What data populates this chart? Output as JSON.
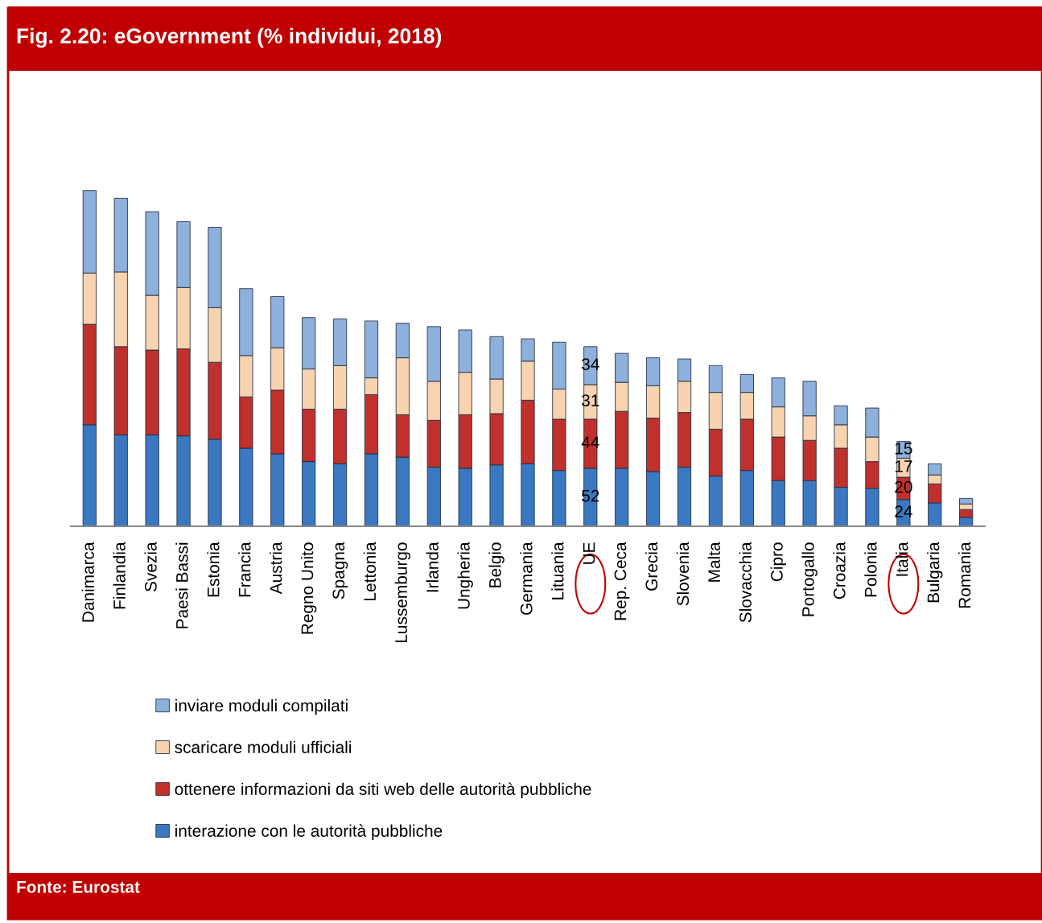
{
  "chart_data": {
    "type": "bar",
    "stacked": true,
    "title": "Fig. 2.20: eGovernment (% individui, 2018)",
    "categories": [
      "Danimarca",
      "Finlandia",
      "Svezia",
      "Paesi Bassi",
      "Estonia",
      "Francia",
      "Austria",
      "Regno Unito",
      "Spagna",
      "Lettonia",
      "Lussemburgo",
      "Irlanda",
      "Ungheria",
      "Belgio",
      "Germania",
      "Lituania",
      "UE",
      "Rep. Ceca",
      "Grecia",
      "Slovenia",
      "Malta",
      "Slovacchia",
      "Cipro",
      "Portogallo",
      "Croazia",
      "Polonia",
      "Italia",
      "Bulgaria",
      "Romania"
    ],
    "series": [
      {
        "name": "interazione con le autorità pubbliche",
        "color": "#3a78c2",
        "values": [
          91,
          82,
          82,
          81,
          78,
          70,
          65,
          58,
          56,
          65,
          62,
          53,
          52,
          55,
          56,
          50,
          52,
          52,
          49,
          53,
          45,
          50,
          41,
          41,
          35,
          34,
          24,
          21,
          8
        ],
        "value_labels": [
          null,
          null,
          null,
          null,
          null,
          null,
          null,
          null,
          null,
          null,
          null,
          null,
          null,
          null,
          null,
          null,
          "52",
          null,
          null,
          null,
          null,
          null,
          null,
          null,
          null,
          null,
          "24",
          null,
          null
        ]
      },
      {
        "name": "ottenere informazioni da siti web delle autorità pubbliche",
        "color": "#c0302c",
        "values": [
          90,
          79,
          76,
          78,
          69,
          46,
          57,
          47,
          49,
          53,
          38,
          42,
          48,
          46,
          57,
          46,
          44,
          51,
          48,
          49,
          42,
          46,
          39,
          36,
          35,
          24,
          20,
          17,
          7
        ],
        "value_labels": [
          null,
          null,
          null,
          null,
          null,
          null,
          null,
          null,
          null,
          null,
          null,
          null,
          null,
          null,
          null,
          null,
          "44",
          null,
          null,
          null,
          null,
          null,
          null,
          null,
          null,
          null,
          "20",
          null,
          null
        ]
      },
      {
        "name": "scaricare moduli ufficiali",
        "color": "#f8d3b0",
        "values": [
          46,
          67,
          49,
          55,
          49,
          37,
          38,
          36,
          39,
          15,
          51,
          35,
          38,
          31,
          35,
          27,
          31,
          26,
          29,
          28,
          33,
          24,
          27,
          22,
          21,
          22,
          17,
          8,
          5
        ],
        "value_labels": [
          null,
          null,
          null,
          null,
          null,
          null,
          null,
          null,
          null,
          null,
          null,
          null,
          null,
          null,
          null,
          null,
          "31",
          null,
          null,
          null,
          null,
          null,
          null,
          null,
          null,
          null,
          "17",
          null,
          null
        ]
      },
      {
        "name": "inviare moduli compilati",
        "color": "#8db0dc",
        "values": [
          74,
          66,
          75,
          59,
          72,
          60,
          46,
          46,
          42,
          51,
          31,
          49,
          38,
          38,
          20,
          42,
          34,
          26,
          25,
          20,
          24,
          16,
          26,
          31,
          17,
          26,
          15,
          10,
          5
        ],
        "value_labels": [
          null,
          null,
          null,
          null,
          null,
          null,
          null,
          null,
          null,
          null,
          null,
          null,
          null,
          null,
          null,
          null,
          "34",
          null,
          null,
          null,
          null,
          null,
          null,
          null,
          null,
          null,
          "15",
          null,
          null
        ]
      }
    ],
    "legend": "bottom",
    "grid": false,
    "annotations": [
      "Fonte: Eurostat"
    ]
  }
}
